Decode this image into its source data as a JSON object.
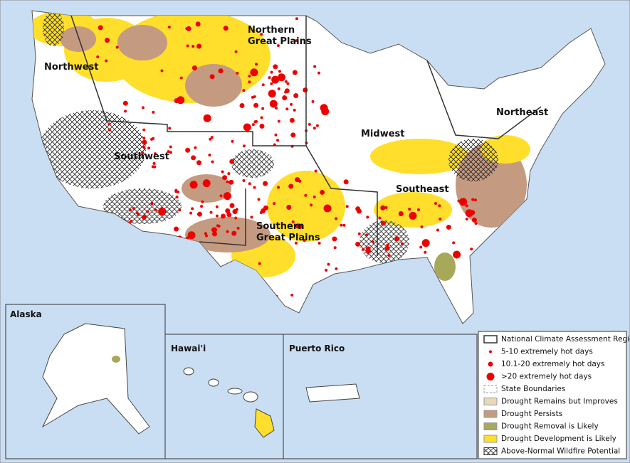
{
  "regions": [
    {
      "lines": [
        "Northwest"
      ]
    },
    {
      "lines": [
        "Northern",
        "Great Plains"
      ]
    },
    {
      "lines": [
        "Midwest"
      ]
    },
    {
      "lines": [
        "Northeast"
      ]
    },
    {
      "lines": [
        "Southwest"
      ]
    },
    {
      "lines": [
        "Southern",
        "Great Plains"
      ]
    },
    {
      "lines": [
        "Southeast"
      ]
    }
  ],
  "insets": [
    "Alaska",
    "Hawai'i",
    "Puerto Rico"
  ],
  "legend": [
    "National Climate Assessment Regions",
    "5-10 extremely hot days",
    "10.1-20 extremely hot days",
    ">20 extremely hot days",
    "State Boundaries",
    "Drought Remains but Improves",
    "Drought Persists",
    "Drought Removal is Likely",
    "Drought Development is Likely",
    "Above-Normal Wildfire Potential"
  ]
}
